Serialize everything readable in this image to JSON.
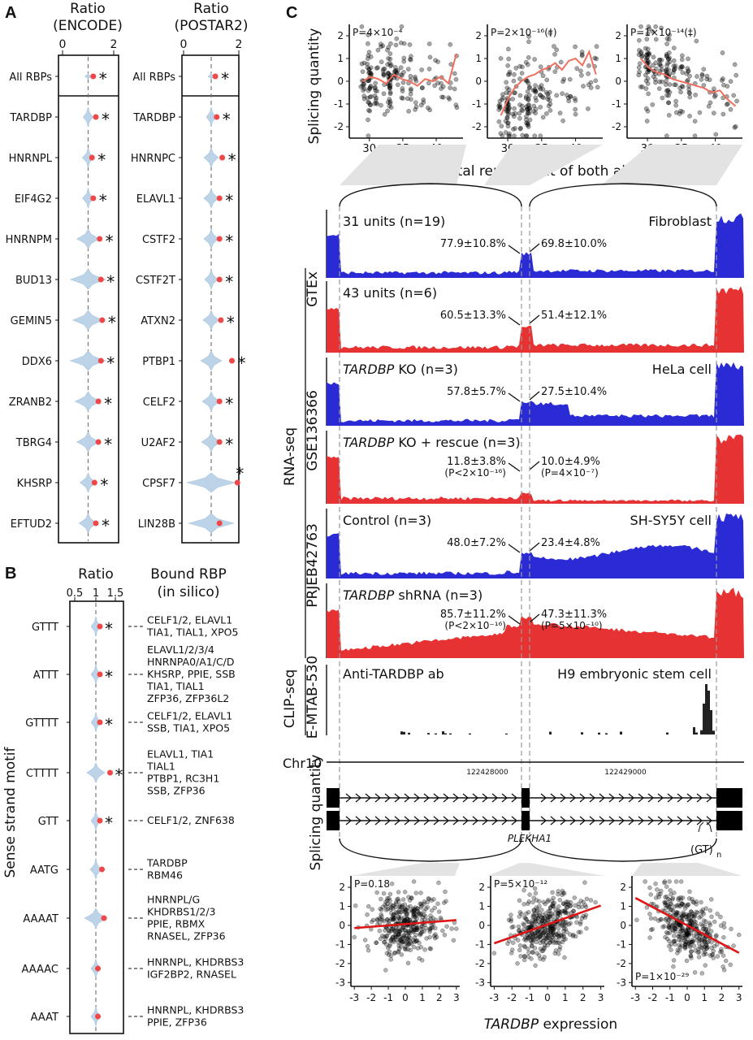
{
  "panels": {
    "a": "A",
    "b": "B",
    "c": "C"
  },
  "panel_a": {
    "left_title_1": "Ratio",
    "left_title_2": "(ENCODE)",
    "right_title_1": "Ratio",
    "right_title_2": "(POSTAR2)",
    "ticks": [
      "0",
      "2"
    ],
    "encode": [
      {
        "label": "All RBPs",
        "value": 1.2,
        "sig": "*"
      },
      {
        "label": "TARDBP",
        "value": 1.3,
        "sig": "*"
      },
      {
        "label": "HNRNPL",
        "value": 1.15,
        "sig": "*"
      },
      {
        "label": "EIF4G2",
        "value": 1.2,
        "sig": "*"
      },
      {
        "label": "HNRNPM",
        "value": 1.45,
        "sig": "*"
      },
      {
        "label": "BUD13",
        "value": 1.5,
        "sig": "*"
      },
      {
        "label": "GEMIN5",
        "value": 1.55,
        "sig": "*"
      },
      {
        "label": "DDX6",
        "value": 1.5,
        "sig": "*"
      },
      {
        "label": "ZRANB2",
        "value": 1.4,
        "sig": "*"
      },
      {
        "label": "TBRG4",
        "value": 1.4,
        "sig": "*"
      },
      {
        "label": "KHSRP",
        "value": 1.25,
        "sig": "*"
      },
      {
        "label": "EFTUD2",
        "value": 1.3,
        "sig": "*"
      }
    ],
    "postar": [
      {
        "label": "All RBPs",
        "value": 1.15,
        "sig": "*"
      },
      {
        "label": "TARDBP",
        "value": 1.2,
        "sig": "*"
      },
      {
        "label": "HNRNPC",
        "value": 1.4,
        "sig": "*"
      },
      {
        "label": "ELAVL1",
        "value": 1.3,
        "sig": "*"
      },
      {
        "label": "CSTF2",
        "value": 1.3,
        "sig": "*"
      },
      {
        "label": "CSTF2T",
        "value": 1.3,
        "sig": "*"
      },
      {
        "label": "ATXN2",
        "value": 1.35,
        "sig": "*"
      },
      {
        "label": "PTBP1",
        "value": 1.75,
        "sig": "*"
      },
      {
        "label": "CELF2",
        "value": 1.3,
        "sig": "*"
      },
      {
        "label": "U2AF2",
        "value": 1.3,
        "sig": "*"
      },
      {
        "label": "CPSF7",
        "value": 1.95,
        "sig": "*"
      },
      {
        "label": "LIN28B",
        "value": 1.3,
        "sig": ""
      }
    ]
  },
  "panel_b": {
    "ylabel": "Sense strand motif",
    "title": "Ratio",
    "ticks": [
      "0.5",
      "1",
      "1.5"
    ],
    "bound_title_1": "Bound RBP",
    "bound_title_2": "(in silico)",
    "motifs": [
      {
        "label": "GTTT",
        "value": 1.1,
        "sig": "*",
        "rbp": [
          "CELF1/2, ELAVL1",
          "TIA1, TIAL1, XPO5"
        ]
      },
      {
        "label": "ATTT",
        "value": 1.1,
        "sig": "*",
        "rbp": [
          "ELAVL1/2/3/4",
          "HNRNPA0/A1/C/D",
          "KHSRP, PPIE, SSB",
          "TIA1, TIAL1",
          "ZFP36, ZFP36L2"
        ]
      },
      {
        "label": "GTTTT",
        "value": 1.1,
        "sig": "*",
        "rbp": [
          "CELF1/2, ELAVL1",
          "SSB, TIA1, XPO5"
        ]
      },
      {
        "label": "CTTTT",
        "value": 1.35,
        "sig": "*",
        "rbp": [
          "ELAVL1, TIA1",
          "TIAL1",
          "PTBP1, RC3H1",
          "SSB, ZFP36"
        ]
      },
      {
        "label": "GTT",
        "value": 1.1,
        "sig": "*",
        "rbp": [
          "CELF1/2, ZNF638"
        ]
      },
      {
        "label": "AATG",
        "value": 1.15,
        "sig": "",
        "rbp": [
          "TARDBP",
          "RBM46"
        ]
      },
      {
        "label": "AAAAT",
        "value": 1.2,
        "sig": "",
        "rbp": [
          "HNRNPL/G",
          "KHDRBS1/2/3",
          "PPIE, RBMX",
          "RNASEL, ZFP36"
        ]
      },
      {
        "label": "AAAAC",
        "value": 1.05,
        "sig": "",
        "rbp": [
          "HNRNPL, KHDRBS3",
          "IGF2BP2, RNASEL"
        ]
      },
      {
        "label": "AAAT",
        "value": 1.05,
        "sig": "",
        "rbp": [
          "HNRNPL, KHDRBS3",
          "PPIE, ZFP36"
        ]
      }
    ]
  },
  "panel_c_top": {
    "ylabel": "Splicing quantity",
    "xlabel": "Total repeat unit of both alleles",
    "x_ticks": [
      "30",
      "35",
      "40"
    ],
    "y_ticks": [
      "2",
      "1",
      "0",
      "-1",
      "-2"
    ],
    "plots": [
      {
        "p_label": "P=4×10⁻⁴",
        "trend": [
          0.0,
          0.2,
          0.1,
          -0.1,
          0.3,
          0.1,
          0.0,
          -0.2,
          0.1,
          0.0,
          0.2,
          -0.1,
          1.2
        ]
      },
      {
        "p_label": "P=2×10⁻¹⁶(†)",
        "trend": [
          -1.5,
          -0.8,
          -0.3,
          0.0,
          0.2,
          0.3,
          0.5,
          0.6,
          0.8,
          0.5,
          0.9,
          1.0,
          0.7,
          1.3,
          0.3
        ]
      },
      {
        "p_label": "P=1×10⁻¹⁴(‡)",
        "trend": [
          1.0,
          0.6,
          0.4,
          0.3,
          0.1,
          0.0,
          -0.1,
          -0.2,
          -0.3,
          -0.5,
          -0.4,
          -0.8,
          -1.1
        ]
      }
    ]
  },
  "panel_c_tracks": {
    "rnaseq_label": "RNA-seq",
    "clip_label": "CLIP-seq",
    "gtex_label": "GTEx",
    "gse_label": "GSE136366",
    "prjeb_label": "PRJEB42763",
    "emtab_label": "E-MTAB-530",
    "tracks": [
      {
        "title": "31 units (n=19)",
        "cell": "Fibroblast",
        "left_pct": "77.9±10.8%",
        "right_pct": "69.8±10.0%",
        "left_p": "",
        "right_p": "",
        "color": "#2b2bd6"
      },
      {
        "title": "43 units (n=6)",
        "cell": "",
        "left_pct": "60.5±13.3%",
        "right_pct": "51.4±12.1%",
        "left_p": "",
        "right_p": "",
        "color": "#e63232"
      },
      {
        "title_italic": "TARDBP",
        "title": " KO (n=3)",
        "cell": "HeLa cell",
        "left_pct": "57.8±5.7%",
        "right_pct": "27.5±10.4%",
        "left_p": "",
        "right_p": "",
        "color": "#2b2bd6"
      },
      {
        "title_italic": "TARDBP",
        "title": " KO + rescue (n=3)",
        "cell": "",
        "left_pct": "11.8±3.8%",
        "right_pct": "10.0±4.9%",
        "left_p": "(P<2×10⁻¹⁶)",
        "right_p": "(P=4×10⁻⁷)",
        "color": "#e63232"
      },
      {
        "title": "Control (n=3)",
        "cell": "SH-SY5Y cell",
        "left_pct": "48.0±7.2%",
        "right_pct": "23.4±4.8%",
        "left_p": "",
        "right_p": "",
        "color": "#2b2bd6"
      },
      {
        "title_italic": "TARDBP",
        "title": " shRNA (n=3)",
        "cell": "",
        "left_pct": "85.7±11.2%",
        "right_pct": "47.3±11.3%",
        "left_p": "(P<2×10⁻¹⁶)",
        "right_p": "(P=5×10⁻¹⁰)",
        "color": "#e63232"
      }
    ],
    "clip_title": "Anti-TARDBP ab",
    "clip_cell": "H9 embryonic stem cell",
    "chr": "Chr10",
    "pos1": "122428000",
    "pos2": "122429000",
    "gene": "PLEKHA1",
    "repeat": "(GT)",
    "repeat_sub": "n"
  },
  "panel_c_bottom": {
    "ylabel": "Splicing quantity",
    "xlabel_italic": "TARDBP",
    "xlabel": " expression",
    "x_ticks": [
      "-3",
      "-2",
      "-1",
      "0",
      "1",
      "2",
      "3"
    ],
    "y_ticks": [
      "2",
      "1",
      "0",
      "-1",
      "-2",
      "-3"
    ],
    "plots": [
      {
        "p_label": "P=0.18",
        "slope": 0.07,
        "intercept": 0.07
      },
      {
        "p_label": "P=5×10⁻¹²",
        "slope": 0.33,
        "intercept": 0.05
      },
      {
        "p_label": "P=1×10⁻²⁹",
        "slope": -0.48,
        "intercept": 0.0
      }
    ]
  },
  "chart_data": [
    {
      "type": "violin",
      "title": "Ratio (ENCODE)",
      "categories": [
        "All RBPs",
        "TARDBP",
        "HNRNPL",
        "EIF4G2",
        "HNRNPM",
        "BUD13",
        "GEMIN5",
        "DDX6",
        "ZRANB2",
        "TBRG4",
        "KHSRP",
        "EFTUD2"
      ],
      "values": [
        1.2,
        1.3,
        1.15,
        1.2,
        1.45,
        1.5,
        1.55,
        1.5,
        1.4,
        1.4,
        1.25,
        1.3
      ],
      "xlim": [
        0,
        2
      ]
    },
    {
      "type": "violin",
      "title": "Ratio (POSTAR2)",
      "categories": [
        "All RBPs",
        "TARDBP",
        "HNRNPC",
        "ELAVL1",
        "CSTF2",
        "CSTF2T",
        "ATXN2",
        "PTBP1",
        "CELF2",
        "U2AF2",
        "CPSF7",
        "LIN28B"
      ],
      "values": [
        1.15,
        1.2,
        1.4,
        1.3,
        1.3,
        1.3,
        1.35,
        1.75,
        1.3,
        1.3,
        1.95,
        1.3
      ],
      "xlim": [
        0,
        2
      ]
    },
    {
      "type": "violin",
      "title": "Ratio",
      "ylabel": "Sense strand motif",
      "categories": [
        "GTTT",
        "ATTT",
        "GTTTT",
        "CTTTT",
        "GTT",
        "AATG",
        "AAAAT",
        "AAAAC",
        "AAAT"
      ],
      "values": [
        1.1,
        1.1,
        1.1,
        1.35,
        1.1,
        1.15,
        1.2,
        1.05,
        1.05
      ]
    },
    {
      "type": "scatter",
      "xlabel": "Total repeat unit of both alleles",
      "ylabel": "Splicing quantity",
      "series": [
        {
          "name": "P=4×10⁻⁴"
        },
        {
          "name": "P=2×10⁻¹⁶(†)"
        },
        {
          "name": "P=1×10⁻¹⁴(‡)"
        }
      ]
    },
    {
      "type": "scatter",
      "xlabel": "TARDBP expression",
      "ylabel": "Splicing quantity",
      "series": [
        {
          "name": "P=0.18"
        },
        {
          "name": "P=5×10⁻¹²"
        },
        {
          "name": "P=1×10⁻²⁹"
        }
      ]
    }
  ]
}
